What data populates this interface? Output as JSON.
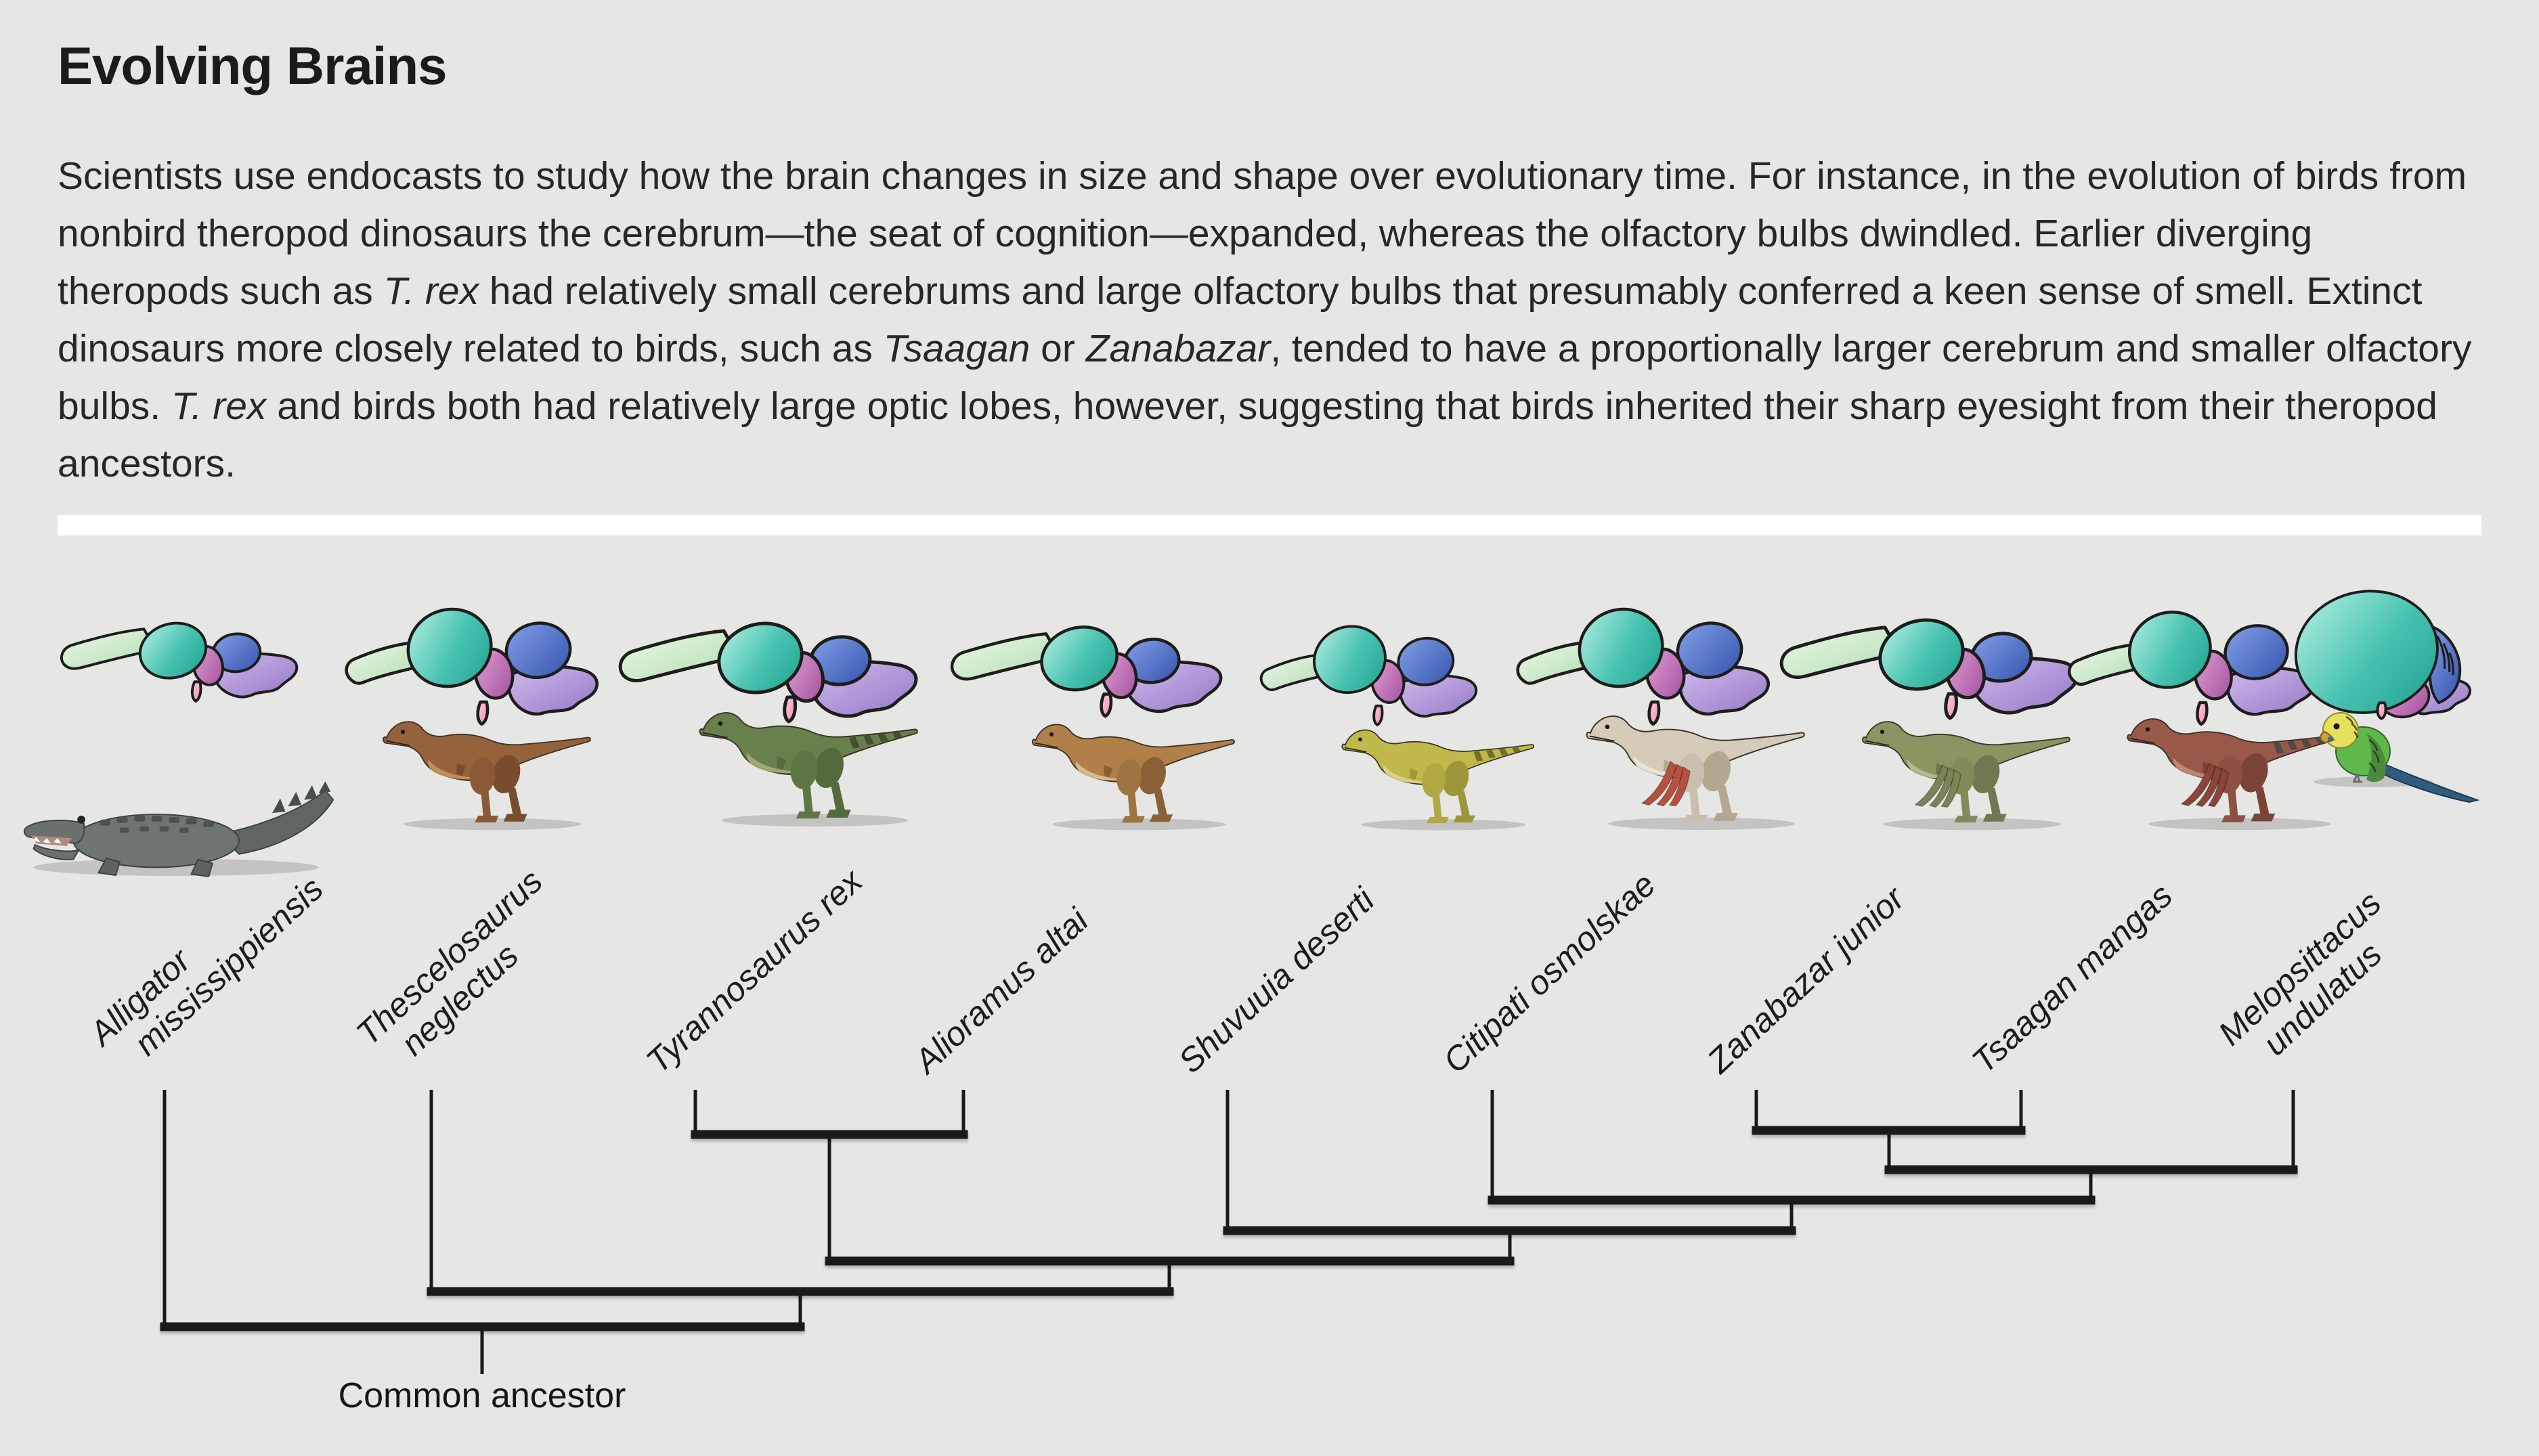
{
  "header": {
    "title": "Evolving Brains",
    "paragraph_segments": [
      {
        "text": "Scientists use endocasts to study how the brain changes in size and shape over evolutionary time. For instance, in the evolution of birds from nonbird theropod dinosaurs the cerebrum—the seat of cognition—expanded, whereas the olfactory bulbs dwindled. Earlier diverging theropods such as ",
        "italic": false
      },
      {
        "text": "T. rex",
        "italic": true
      },
      {
        "text": " had relatively small cerebrums and large olfactory bulbs that presumably conferred a keen sense of smell. Extinct dinosaurs more closely related to birds, such as ",
        "italic": false
      },
      {
        "text": "Tsaagan",
        "italic": true
      },
      {
        "text": " or ",
        "italic": false
      },
      {
        "text": "Zanabazar",
        "italic": true
      },
      {
        "text": ", tended to have a proportionally larger cerebrum and smaller olfactory bulbs. ",
        "italic": false
      },
      {
        "text": "T. rex",
        "italic": true
      },
      {
        "text": " and birds both had relatively large optic lobes, however, suggesting that birds inherited their sharp eyesight from their theropod ancestors.",
        "italic": false
      }
    ]
  },
  "figure": {
    "species": [
      {
        "name_line1": "Alligator",
        "name_line2": "mississippiensis"
      },
      {
        "name_line1": "Thescelosaurus",
        "name_line2": "neglectus"
      },
      {
        "name_line1": "Tyrannosaurus rex",
        "name_line2": ""
      },
      {
        "name_line1": "Alioramus altai",
        "name_line2": ""
      },
      {
        "name_line1": "Shuvuuia deserti",
        "name_line2": ""
      },
      {
        "name_line1": "Citipati osmolskae",
        "name_line2": ""
      },
      {
        "name_line1": "Zanabazar junior",
        "name_line2": ""
      },
      {
        "name_line1": "Tsaagan mangas",
        "name_line2": ""
      },
      {
        "name_line1": "Melopsittacus",
        "name_line2": "undulatus"
      }
    ],
    "tree": {
      "root_label": "Common ancestor",
      "topology_newick": "(Alligator,(Thescelosaurus,((Tyrannosaurus,Alioramus),(Shuvuuia,(Citipati,((Zanabazar,Tsaagan),Melopsittacus))))));"
    },
    "endocast_colors": {
      "olfactory_tract": "#c3e6c2",
      "cerebrum": "#3dbcab",
      "optic_lobe": "#bf66b4",
      "cerebellum": "#4266be",
      "brainstem": "#ae8fd5",
      "pituitary": "#f5a6c3",
      "outline": "#1d1d1b"
    }
  }
}
